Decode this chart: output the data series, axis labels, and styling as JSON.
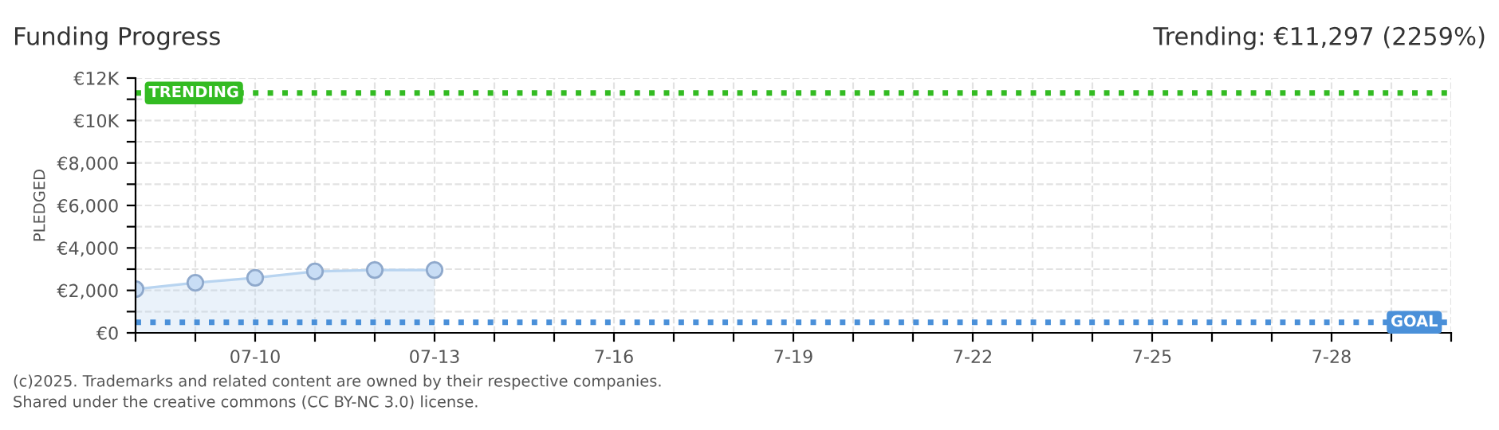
{
  "chart_data": {
    "type": "area",
    "title": "Funding Progress",
    "subtitle": "Trending: €11,297 (2259%)",
    "ylabel": "PLEDGED",
    "x": [
      "2025-07-08",
      "2025-07-09",
      "2025-07-10",
      "2025-07-11",
      "2025-07-12",
      "2025-07-13"
    ],
    "series": [
      {
        "color": "#b8d4f0",
        "values": [
          2060,
          2360,
          2590,
          2890,
          2960,
          2960
        ]
      }
    ],
    "marker": "circle",
    "grid": true,
    "xlim": [
      "2025-07-08",
      "2025-07-30"
    ],
    "xticks": [
      {
        "value": "2025-07-08",
        "label": null
      },
      {
        "value": "2025-07-09",
        "label": null
      },
      {
        "value": "2025-07-10",
        "label": "07-10"
      },
      {
        "value": "2025-07-11",
        "label": null
      },
      {
        "value": "2025-07-12",
        "label": null
      },
      {
        "value": "2025-07-13",
        "label": "07-13"
      },
      {
        "value": "2025-07-14",
        "label": null
      },
      {
        "value": "2025-07-15",
        "label": null
      },
      {
        "value": "2025-07-16",
        "label": "7-16"
      },
      {
        "value": "2025-07-17",
        "label": null
      },
      {
        "value": "2025-07-18",
        "label": null
      },
      {
        "value": "2025-07-19",
        "label": "7-19"
      },
      {
        "value": "2025-07-20",
        "label": null
      },
      {
        "value": "2025-07-21",
        "label": null
      },
      {
        "value": "2025-07-22",
        "label": "7-22"
      },
      {
        "value": "2025-07-23",
        "label": null
      },
      {
        "value": "2025-07-24",
        "label": null
      },
      {
        "value": "2025-07-25",
        "label": "7-25"
      },
      {
        "value": "2025-07-26",
        "label": null
      },
      {
        "value": "2025-07-27",
        "label": null
      },
      {
        "value": "2025-07-28",
        "label": "7-28"
      },
      {
        "value": "2025-07-29",
        "label": null
      },
      {
        "value": "2025-07-30",
        "label": null
      }
    ],
    "ylim": [
      0,
      12000
    ],
    "yticks": [
      {
        "value": 0,
        "label": "€0"
      },
      {
        "value": 1000,
        "label": null
      },
      {
        "value": 2000,
        "label": "€2,000"
      },
      {
        "value": 3000,
        "label": null
      },
      {
        "value": 4000,
        "label": "€4,000"
      },
      {
        "value": 5000,
        "label": null
      },
      {
        "value": 6000,
        "label": "€6,000"
      },
      {
        "value": 7000,
        "label": null
      },
      {
        "value": 8000,
        "label": "€8,000"
      },
      {
        "value": 9000,
        "label": null
      },
      {
        "value": 10000,
        "label": "€10K"
      },
      {
        "value": 11000,
        "label": null
      },
      {
        "value": 12000,
        "label": "€12K"
      }
    ],
    "ref_lines": [
      {
        "axis": "y",
        "value": 11297,
        "label": "TRENDING",
        "color": "#33bb22",
        "line_style": "dotted"
      },
      {
        "axis": "y",
        "value": 500,
        "label": "GOAL",
        "color": "#4a90d9",
        "line_style": "dotted"
      }
    ],
    "annotations": [
      "(c)2025. Trademarks and related content are owned by their respective companies.",
      "Shared under the creative commons (CC BY-NC 3.0) license."
    ]
  }
}
